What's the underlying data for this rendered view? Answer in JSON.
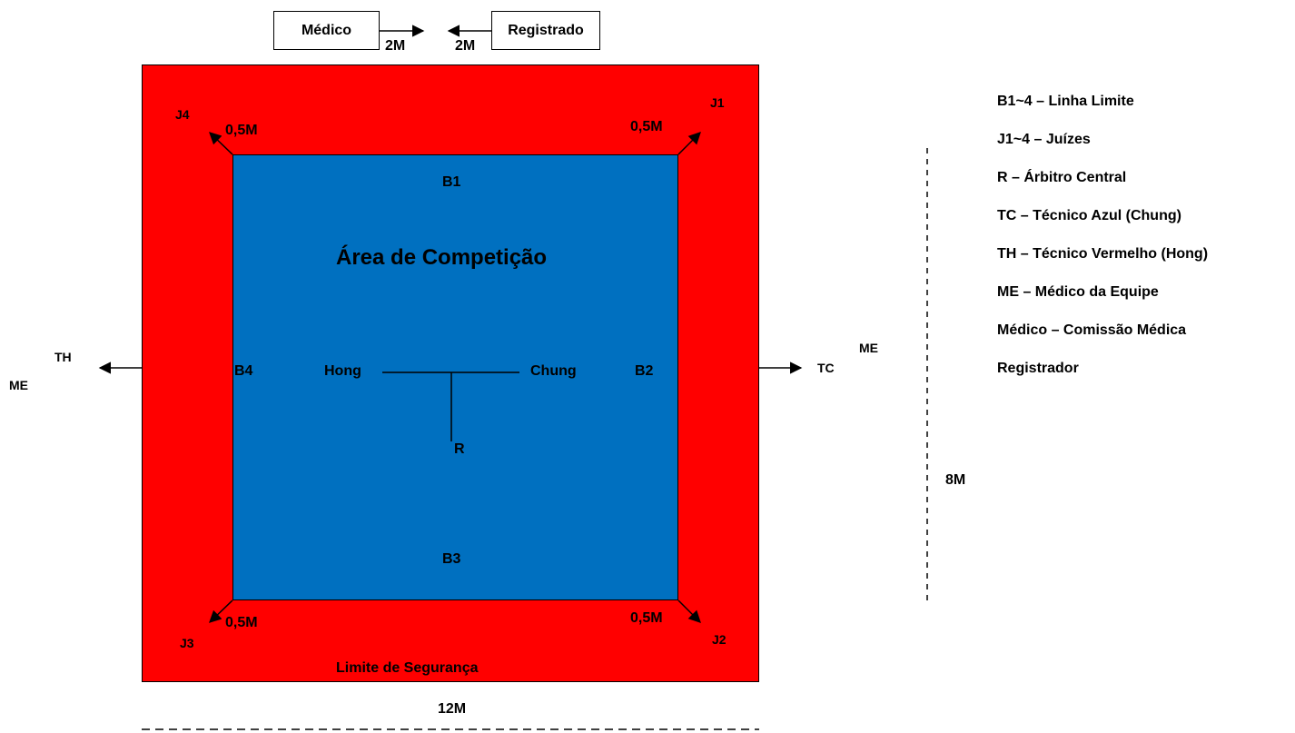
{
  "top_boxes": {
    "medico": "Médico",
    "registrado": "Registrado",
    "medico_dist": "2M",
    "registrado_dist": "2M"
  },
  "areas": {
    "competition_title": "Área de Competição",
    "safety_label": "Limite de Segurança"
  },
  "boundaries": {
    "b1": "B1",
    "b2": "B2",
    "b3": "B3",
    "b4": "B4"
  },
  "judges": {
    "j1": "J1",
    "j2": "J2",
    "j3": "J3",
    "j4": "J4"
  },
  "corner_dist": {
    "tl": "0,5M",
    "tr": "0,5M",
    "bl": "0,5M",
    "br": "0,5M"
  },
  "center": {
    "hong": "Hong",
    "chung": "Chung",
    "referee": "R"
  },
  "sides": {
    "left_th": "TH",
    "left_me": "ME",
    "right_tc": "TC",
    "right_me": "ME"
  },
  "dimensions": {
    "width": "12M",
    "height": "8M"
  },
  "legend": [
    "B1~4 – Linha Limite",
    "J1~4 – Juízes",
    "R – Árbitro Central",
    "TC – Técnico Azul (Chung)",
    "TH – Técnico Vermelho (Hong)",
    "ME – Médico da Equipe",
    "Médico – Comissão Médica",
    "Registrador"
  ],
  "colors": {
    "safety_area": "#ff0000",
    "competition_area": "#0070c0"
  }
}
